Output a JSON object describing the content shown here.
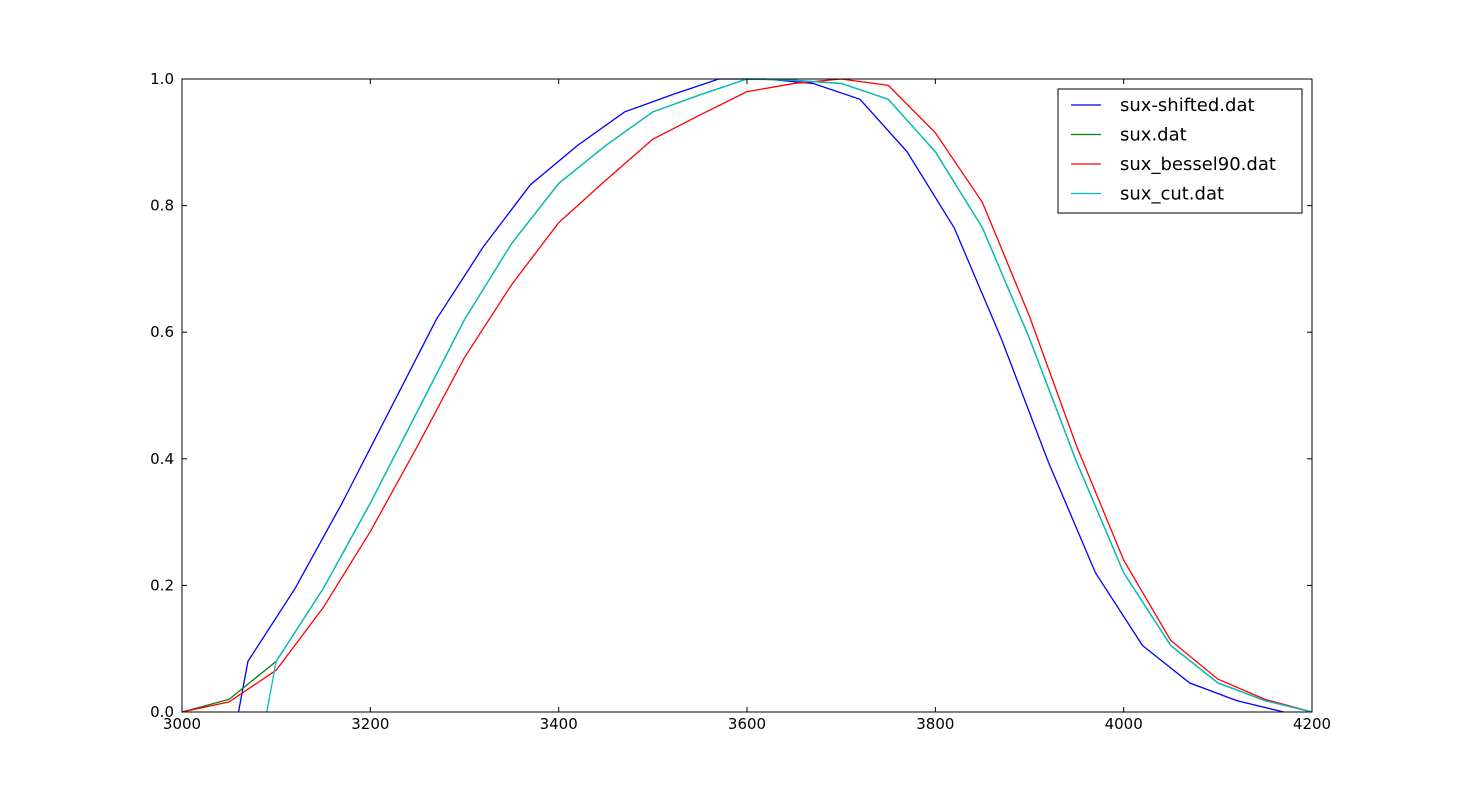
{
  "chart_data": {
    "type": "line",
    "title": "",
    "xlabel": "",
    "ylabel": "",
    "xlim": [
      3000,
      4200
    ],
    "ylim": [
      0.0,
      1.0
    ],
    "xticks": [
      3000,
      3200,
      3400,
      3600,
      3800,
      4000,
      4200
    ],
    "yticks": [
      0.0,
      0.2,
      0.4,
      0.6,
      0.8,
      1.0
    ],
    "xtick_labels": [
      "3000",
      "3200",
      "3400",
      "3600",
      "3800",
      "4000",
      "4200"
    ],
    "ytick_labels": [
      "0.0",
      "0.2",
      "0.4",
      "0.6",
      "0.8",
      "1.0"
    ],
    "grid": false,
    "legend_position": "top-right",
    "series": [
      {
        "name": "sux-shifted.dat",
        "color": "#0000ff",
        "x": [
          3060,
          3070,
          3120,
          3170,
          3220,
          3270,
          3320,
          3370,
          3420,
          3470,
          3520,
          3570,
          3620,
          3670,
          3720,
          3770,
          3820,
          3870,
          3920,
          3970,
          4020,
          4070,
          4120,
          4170
        ],
        "y": [
          0.0,
          0.08,
          0.195,
          0.33,
          0.475,
          0.62,
          0.735,
          0.833,
          0.895,
          0.948,
          0.975,
          1.0,
          1.0,
          0.993,
          0.968,
          0.885,
          0.765,
          0.59,
          0.395,
          0.22,
          0.105,
          0.046,
          0.018,
          0.0
        ]
      },
      {
        "name": "sux.dat",
        "color": "#008000",
        "x": [
          3000,
          3050,
          3100,
          3150,
          3200,
          3250,
          3300,
          3350,
          3400,
          3450,
          3500,
          3550,
          3600,
          3650,
          3700,
          3750,
          3800,
          3850,
          3900,
          3950,
          4000,
          4050,
          4100,
          4150,
          4200
        ],
        "y": [
          0.0,
          0.02,
          0.08,
          0.195,
          0.33,
          0.475,
          0.62,
          0.74,
          0.835,
          0.895,
          0.948,
          0.975,
          1.0,
          0.998,
          0.993,
          0.968,
          0.885,
          0.765,
          0.59,
          0.395,
          0.22,
          0.105,
          0.046,
          0.018,
          0.0
        ]
      },
      {
        "name": "sux_bessel90.dat",
        "color": "#ff0000",
        "x": [
          3000,
          3050,
          3100,
          3150,
          3200,
          3250,
          3300,
          3350,
          3400,
          3450,
          3500,
          3550,
          3600,
          3650,
          3700,
          3750,
          3800,
          3850,
          3900,
          3950,
          4000,
          4050,
          4100,
          4150,
          4200
        ],
        "y": [
          0.0,
          0.016,
          0.066,
          0.165,
          0.285,
          0.42,
          0.56,
          0.675,
          0.773,
          0.84,
          0.905,
          0.943,
          0.98,
          0.993,
          1.0,
          0.99,
          0.915,
          0.805,
          0.625,
          0.42,
          0.24,
          0.113,
          0.052,
          0.02,
          0.0
        ]
      },
      {
        "name": "sux_cut.dat",
        "color": "#00bfbf",
        "x": [
          3090,
          3100,
          3150,
          3200,
          3250,
          3300,
          3350,
          3400,
          3450,
          3500,
          3550,
          3600,
          3650,
          3700,
          3750,
          3800,
          3850,
          3900,
          3950,
          4000,
          4050,
          4100,
          4150,
          4200
        ],
        "y": [
          0.0,
          0.08,
          0.195,
          0.33,
          0.475,
          0.62,
          0.74,
          0.835,
          0.895,
          0.948,
          0.975,
          1.0,
          0.998,
          0.993,
          0.968,
          0.885,
          0.765,
          0.59,
          0.395,
          0.22,
          0.105,
          0.046,
          0.018,
          0.0
        ]
      }
    ]
  }
}
